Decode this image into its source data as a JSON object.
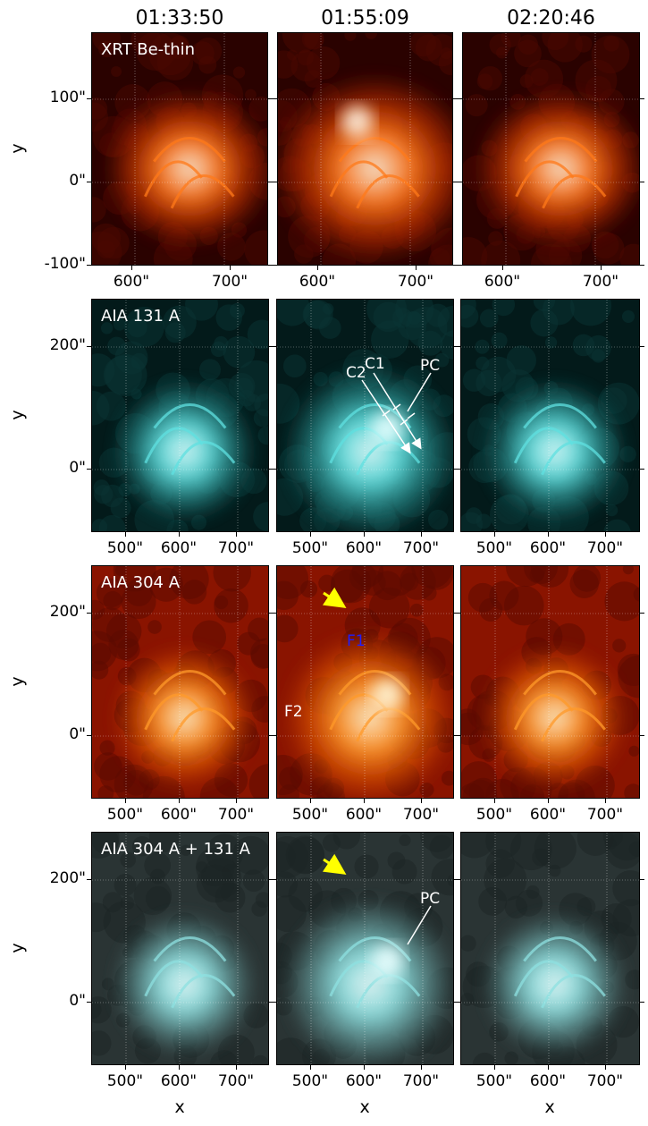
{
  "column_titles": [
    "01:33:50",
    "01:55:09",
    "02:20:46"
  ],
  "rows": [
    {
      "name": "xrt",
      "label": "XRT Be-thin",
      "palette": "xrt",
      "yticks": [
        "100\"",
        "0\"",
        "-100\""
      ],
      "xticks": [
        "600\"",
        "700\""
      ]
    },
    {
      "name": "aia131",
      "label": "AIA 131 A",
      "palette": "cyan",
      "yticks": [
        "200\"",
        "0\""
      ],
      "xticks": [
        "500\"",
        "600\"",
        "700\""
      ]
    },
    {
      "name": "aia304",
      "label": "AIA 304 A",
      "palette": "aia304",
      "yticks": [
        "200\"",
        "0\""
      ],
      "xticks": [
        "500\"",
        "600\"",
        "700\""
      ]
    },
    {
      "name": "composite",
      "label": "AIA 304 A + 131 A",
      "palette": "composite",
      "yticks": [
        "200\"",
        "0\""
      ],
      "xticks": [
        "500\"",
        "600\"",
        "700\""
      ]
    }
  ],
  "axis_labels": {
    "x": "x",
    "y": "y"
  },
  "annotations": {
    "aia131_mid": {
      "c1": "C1",
      "c2": "C2",
      "pc": "PC"
    },
    "aia304_mid": {
      "f1": "F1",
      "f2": "F2"
    },
    "composite_mid": {
      "pc": "PC"
    }
  },
  "colors": {
    "arrow_yellow": "#ffff00",
    "f1_blue": "#1e1eff",
    "label_white": "#ffffff"
  }
}
